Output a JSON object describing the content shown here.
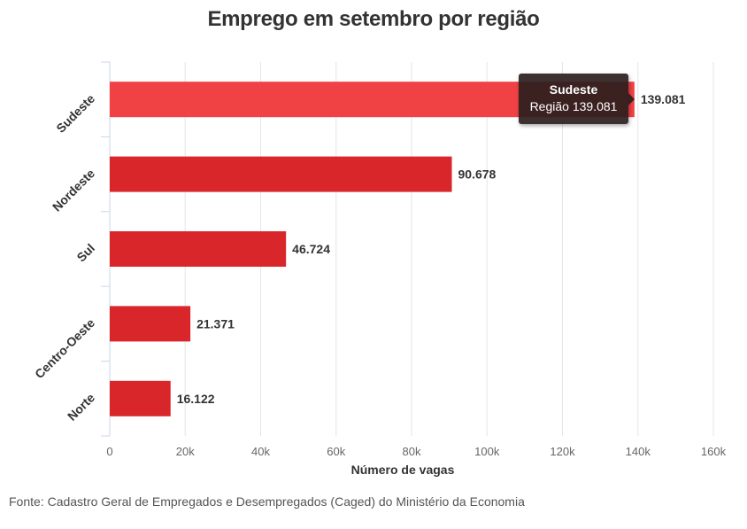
{
  "chart_data": {
    "type": "bar",
    "orientation": "horizontal",
    "title": "Emprego em setembro por região",
    "xlabel": "Número de vagas",
    "ylabel": "",
    "categories": [
      "Sudeste",
      "Nordeste",
      "Sul",
      "Centro-Oeste",
      "Norte"
    ],
    "values": [
      139081,
      90678,
      46724,
      21371,
      16122
    ],
    "data_labels": [
      "139.081",
      "90.678",
      "46.724",
      "21.371",
      "16.122"
    ],
    "xlim": [
      0,
      160000
    ],
    "x_ticks": [
      0,
      20000,
      40000,
      60000,
      80000,
      100000,
      120000,
      140000,
      160000
    ],
    "x_tick_labels": [
      "0",
      "20k",
      "40k",
      "60k",
      "80k",
      "100k",
      "120k",
      "140k",
      "160k"
    ],
    "grid": true,
    "highlighted_index": 0
  },
  "colors": {
    "bar": "#d9262b",
    "bar_highlight": "#f04144",
    "grid": "#e6e6e6",
    "axis": "#ccd6eb"
  },
  "tooltip": {
    "title": "Sudeste",
    "body": "Região 139.081"
  },
  "source": "Fonte: Cadastro Geral de Empregados e Desempregados (Caged) do Ministério da Economia"
}
